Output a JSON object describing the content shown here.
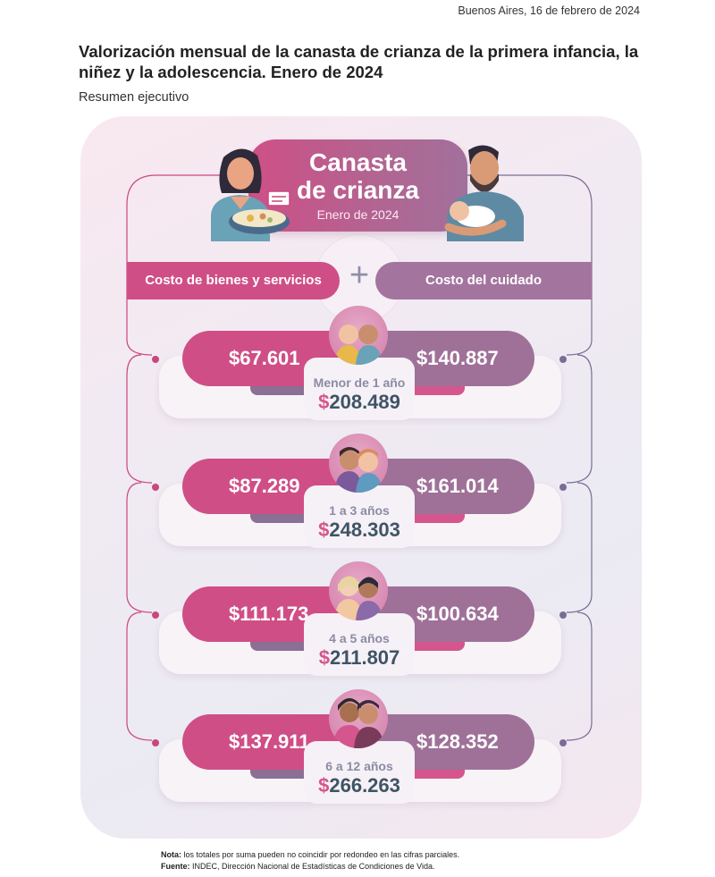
{
  "header": {
    "date": "Buenos Aires, 16 de febrero de 2024",
    "title": "Valorización mensual de la canasta de crianza de la primera infancia, la niñez y la adolescencia. Enero de 2024",
    "subtitle": "Resumen ejecutivo"
  },
  "infographic": {
    "title_line1": "Canasta",
    "title_line2": "de crianza",
    "period": "Enero de 2024",
    "category_goods": "Costo de bienes y servicios",
    "category_care": "Costo del cuidado",
    "plus": "+",
    "rows": [
      {
        "age_label": "Menor de 1 año",
        "goods": "$67.601",
        "care": "$140.887",
        "currency": "$",
        "total": "208.489"
      },
      {
        "age_label": "1 a 3 años",
        "goods": "$87.289",
        "care": "$161.014",
        "currency": "$",
        "total": "248.303"
      },
      {
        "age_label": "4 a 5 años",
        "goods": "$111.173",
        "care": "$100.634",
        "currency": "$",
        "total": "211.807"
      },
      {
        "age_label": "6 a 12 años",
        "goods": "$137.911",
        "care": "$128.352",
        "currency": "$",
        "total": "266.263"
      }
    ]
  },
  "footer": {
    "note_label": "Nota:",
    "note_text": " los totales por suma pueden no coincidir por redondeo en las cifras parciales.",
    "source_label": "Fuente:",
    "source_text": " INDEC, Dirección Nacional de Estadísticas de Condiciones de Vida."
  },
  "colors": {
    "pink": "#cf4e86",
    "purple": "#9f7198",
    "total_text": "#3e5466",
    "age_label": "#8a8ca5"
  },
  "icons": [
    "mother-cooking-icon",
    "father-holding-baby-icon",
    "babies-icon",
    "toddlers-icon",
    "children-icon",
    "preteens-icon"
  ]
}
